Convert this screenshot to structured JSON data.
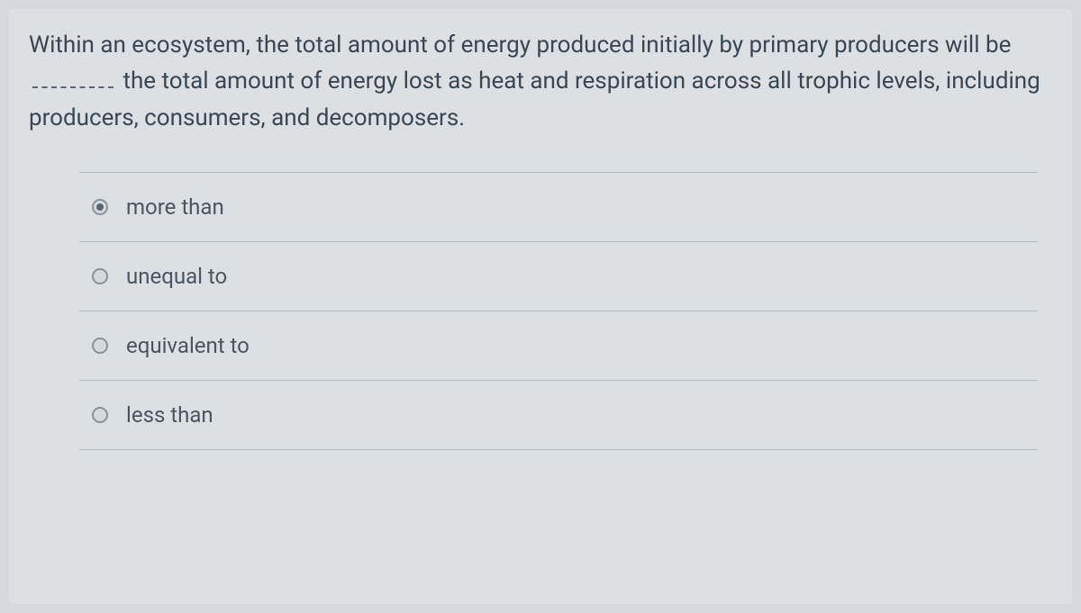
{
  "question": {
    "text_before_blank": "Within an ecosystem, the total amount of energy produced initially by primary producers will be ",
    "text_after_blank": " the total amount of energy lost as heat and respiration across all trophic levels, including producers, consumers, and decomposers."
  },
  "options": [
    {
      "label": "more than",
      "selected": true
    },
    {
      "label": "unequal to",
      "selected": false
    },
    {
      "label": "equivalent to",
      "selected": false
    },
    {
      "label": "less than",
      "selected": false
    }
  ],
  "colors": {
    "background": "#d5d8dc",
    "card_background": "#dce0e3",
    "text": "#3a4651",
    "option_text": "#4a5560",
    "divider": "#b4bbc2",
    "radio_border": "#8a929a",
    "radio_fill": "#5a6570"
  },
  "typography": {
    "question_fontsize": 26,
    "option_fontsize": 24
  }
}
